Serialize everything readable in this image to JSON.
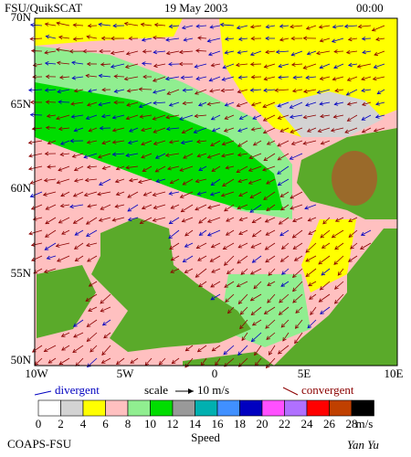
{
  "header": {
    "left": "FSU/QuikSCAT",
    "center": "19 May 2003",
    "right": "00:00"
  },
  "map": {
    "lat_labels": [
      "70N",
      "65N",
      "60N",
      "55N",
      "50N"
    ],
    "lon_labels": [
      "10W",
      "5W",
      "0",
      "5E",
      "10E"
    ]
  },
  "legend": {
    "divergent": "divergent",
    "scale": "scale",
    "scale_value": "10 m/s",
    "convergent": "convergent"
  },
  "colorbar": {
    "ticks": [
      0,
      2,
      4,
      6,
      8,
      10,
      12,
      14,
      16,
      18,
      20,
      22,
      24,
      26,
      28
    ],
    "unit": "m/s",
    "title": "Speed",
    "colors": [
      "#ffffff",
      "#d3d3d3",
      "#ffff00",
      "#ffc0c0",
      "#90ee90",
      "#00dd00",
      "#999999",
      "#00b0b0",
      "#4090ff",
      "#0000c0",
      "#ff50ff",
      "#b070ff",
      "#ff0000",
      "#c04000",
      "#000000"
    ]
  },
  "footer": {
    "left": "COAPS-FSU",
    "right": "Yan Yu"
  }
}
